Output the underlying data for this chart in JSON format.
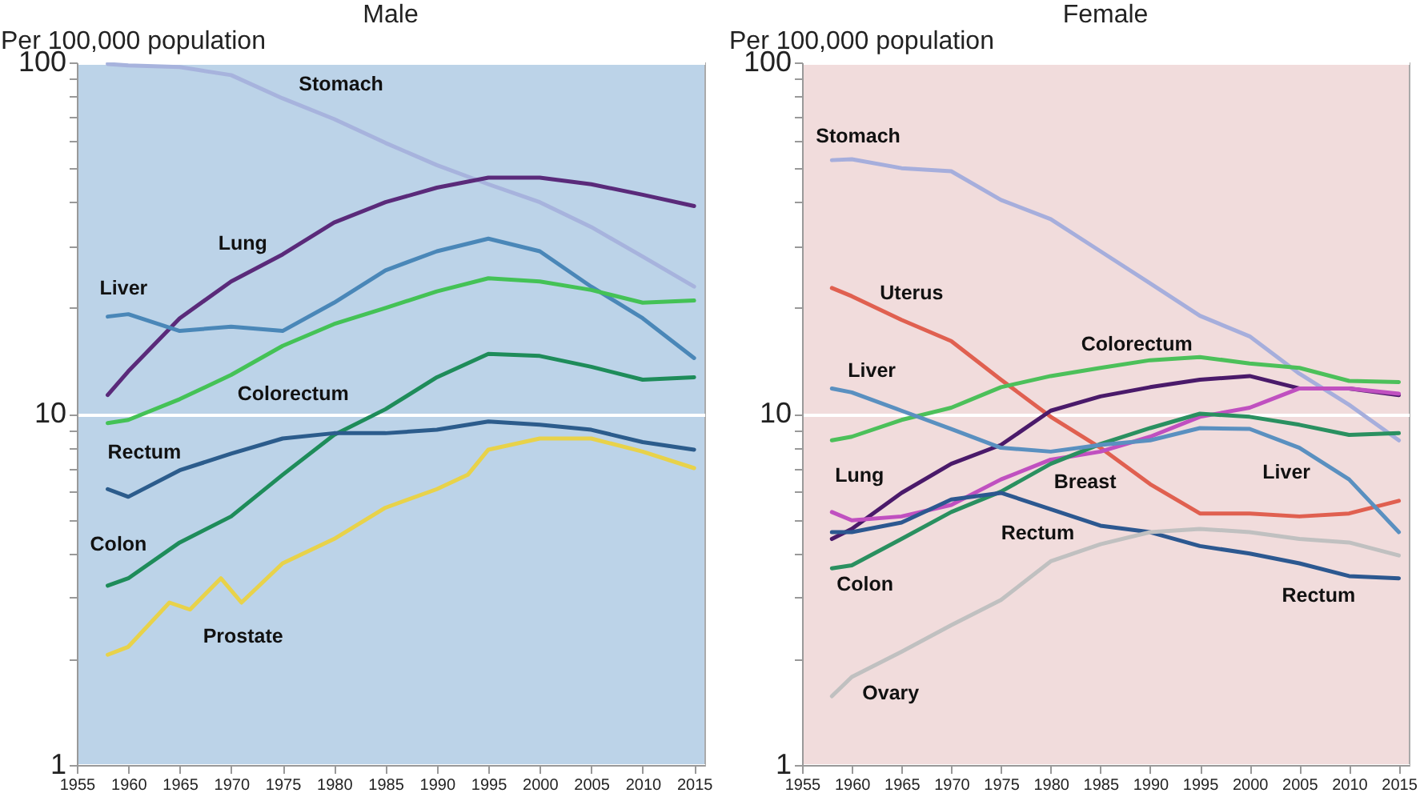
{
  "chart_data": [
    {
      "type": "line",
      "title": "Male",
      "ylabel": "Per 100,000 population",
      "log": true,
      "grid": "y",
      "xlim": [
        1955,
        2016
      ],
      "xticks": [
        1955,
        1960,
        1965,
        1970,
        1975,
        1980,
        1985,
        1990,
        1995,
        2000,
        2005,
        2010,
        2015
      ],
      "ylim": [
        1,
        100
      ],
      "yticks": [
        1,
        {
          "value": 2,
          "label": null
        },
        {
          "value": 3,
          "label": null
        },
        {
          "value": 4,
          "label": null
        },
        {
          "value": 5,
          "label": null
        },
        {
          "value": 6,
          "label": null
        },
        {
          "value": 7,
          "label": null
        },
        {
          "value": 8,
          "label": null
        },
        {
          "value": 9,
          "label": null
        },
        10,
        {
          "value": 20,
          "label": null
        },
        {
          "value": 30,
          "label": null
        },
        {
          "value": 40,
          "label": null
        },
        {
          "value": 50,
          "label": null
        },
        {
          "value": 60,
          "label": null
        },
        {
          "value": 70,
          "label": null
        },
        {
          "value": 80,
          "label": null
        },
        {
          "value": 90,
          "label": null
        },
        100
      ],
      "series": [
        {
          "name": "Stomach",
          "color": "#a7b3dd",
          "x": [
            1958,
            1960,
            1965,
            1970,
            1975,
            1980,
            1985,
            1990,
            1995,
            2000,
            2005,
            2010,
            2015
          ],
          "values": [
            99,
            98,
            97,
            92,
            79,
            69,
            59,
            51,
            45,
            40,
            34,
            28,
            23
          ]
        },
        {
          "name": "Lung",
          "color": "#5a2a7a",
          "x": [
            1958,
            1960,
            1965,
            1970,
            1975,
            1980,
            1985,
            1990,
            1995,
            2000,
            2005,
            2010,
            2015
          ],
          "values": [
            11.3,
            13.2,
            18.7,
            23.8,
            28.4,
            35,
            40,
            44,
            47,
            47,
            45,
            42,
            39
          ]
        },
        {
          "name": "Liver",
          "color": "#4a87b8",
          "x": [
            1958,
            1960,
            1965,
            1970,
            1975,
            1980,
            1985,
            1990,
            1995,
            2000,
            2005,
            2010,
            2015
          ],
          "values": [
            18.9,
            19.2,
            17.2,
            17.7,
            17.2,
            20.7,
            25.6,
            29,
            31.5,
            29,
            23,
            18.7,
            14.4
          ]
        },
        {
          "name": "Colorectum",
          "color": "#44c256",
          "x": [
            1958,
            1960,
            1965,
            1970,
            1975,
            1980,
            1985,
            1990,
            1995,
            2000,
            2005,
            2010,
            2015
          ],
          "values": [
            9.4,
            9.6,
            11,
            12.9,
            15.6,
            18,
            20,
            22.3,
            24.3,
            23.8,
            22.5,
            20.7,
            21
          ]
        },
        {
          "name": "Colon",
          "color": "#1e8c5a",
          "x": [
            1958,
            1960,
            1965,
            1970,
            1975,
            1980,
            1985,
            1990,
            1995,
            2000,
            2005,
            2010,
            2015
          ],
          "values": [
            3.24,
            3.4,
            4.3,
            5.1,
            6.7,
            8.7,
            10.3,
            12.7,
            14.8,
            14.6,
            13.6,
            12.5,
            12.7
          ]
        },
        {
          "name": "Rectum",
          "color": "#2c5c8c",
          "x": [
            1958,
            1960,
            1965,
            1970,
            1975,
            1980,
            1985,
            1990,
            1995,
            2000,
            2005,
            2010,
            2015
          ],
          "values": [
            6.1,
            5.8,
            6.9,
            7.7,
            8.5,
            8.8,
            8.8,
            9,
            9.5,
            9.3,
            9,
            8.3,
            7.9
          ]
        },
        {
          "name": "Prostate",
          "color": "#e8d24a",
          "x": [
            1958,
            1960,
            1964,
            1966,
            1969,
            1971,
            1975,
            1980,
            1985,
            1990,
            1993,
            1995,
            2000,
            2005,
            2010,
            2015
          ],
          "values": [
            2.06,
            2.17,
            2.9,
            2.77,
            3.4,
            2.9,
            3.75,
            4.4,
            5.4,
            6.1,
            6.7,
            7.9,
            8.5,
            8.5,
            7.8,
            7.0
          ]
        }
      ]
    },
    {
      "type": "line",
      "title": "Female",
      "ylabel": "Per 100,000 population",
      "log": true,
      "grid": "y",
      "xlim": [
        1955,
        2016
      ],
      "xticks": [
        1955,
        1960,
        1965,
        1970,
        1975,
        1980,
        1985,
        1990,
        1995,
        2000,
        2005,
        2010,
        2015
      ],
      "ylim": [
        1,
        100
      ],
      "yticks": [
        1,
        {
          "value": 2,
          "label": null
        },
        {
          "value": 3,
          "label": null
        },
        {
          "value": 4,
          "label": null
        },
        {
          "value": 5,
          "label": null
        },
        {
          "value": 6,
          "label": null
        },
        {
          "value": 7,
          "label": null
        },
        {
          "value": 8,
          "label": null
        },
        {
          "value": 9,
          "label": null
        },
        10,
        {
          "value": 20,
          "label": null
        },
        {
          "value": 30,
          "label": null
        },
        {
          "value": 40,
          "label": null
        },
        {
          "value": 50,
          "label": null
        },
        {
          "value": 60,
          "label": null
        },
        {
          "value": 70,
          "label": null
        },
        {
          "value": 80,
          "label": null
        },
        {
          "value": 90,
          "label": null
        },
        100
      ],
      "series": [
        {
          "name": "Stomach",
          "color": "#a6aedc",
          "x": [
            1958,
            1960,
            1965,
            1970,
            1975,
            1980,
            1985,
            1990,
            1995,
            2000,
            2005,
            2010,
            2015
          ],
          "values": [
            52.7,
            53,
            50,
            49,
            40.6,
            35.8,
            29,
            23.5,
            19,
            16.6,
            13,
            10.6,
            8.4
          ]
        },
        {
          "name": "Uterus",
          "color": "#e06050",
          "x": [
            1958,
            1960,
            1965,
            1970,
            1975,
            1980,
            1985,
            1990,
            1995,
            2000,
            2005,
            2010,
            2015
          ],
          "values": [
            22.8,
            21.6,
            18.5,
            16.1,
            12.5,
            9.8,
            8,
            6.3,
            5.2,
            5.2,
            5.1,
            5.2,
            5.65
          ]
        },
        {
          "name": "Colorectum",
          "color": "#4cc05a",
          "x": [
            1958,
            1960,
            1965,
            1970,
            1975,
            1980,
            1985,
            1990,
            1995,
            2000,
            2005,
            2010,
            2015
          ],
          "values": [
            8.4,
            8.6,
            9.6,
            10.4,
            11.9,
            12.8,
            13.5,
            14.2,
            14.5,
            13.9,
            13.5,
            12.4,
            12.3
          ]
        },
        {
          "name": "Lung",
          "color": "#4a1a6a",
          "x": [
            1958,
            1960,
            1965,
            1970,
            1975,
            1980,
            1985,
            1990,
            1995,
            2000,
            2005,
            2010,
            2015
          ],
          "values": [
            4.4,
            4.7,
            5.95,
            7.2,
            8.15,
            10.2,
            11.2,
            11.9,
            12.5,
            12.8,
            11.8,
            11.8,
            11.3
          ]
        },
        {
          "name": "Breast",
          "color": "#c050c0",
          "x": [
            1958,
            1960,
            1965,
            1970,
            1975,
            1980,
            1985,
            1990,
            1995,
            2000,
            2005,
            2010,
            2015
          ],
          "values": [
            5.25,
            4.97,
            5.1,
            5.5,
            6.5,
            7.4,
            7.8,
            8.6,
            9.8,
            10.4,
            11.8,
            11.8,
            11.4
          ]
        },
        {
          "name": "Colon",
          "color": "#2a9060",
          "x": [
            1958,
            1960,
            1965,
            1970,
            1975,
            1980,
            1985,
            1990,
            1995,
            2000,
            2005,
            2010,
            2015
          ],
          "values": [
            3.63,
            3.7,
            4.4,
            5.25,
            6,
            7.2,
            8.2,
            9.1,
            10,
            9.8,
            9.3,
            8.7,
            8.8
          ]
        },
        {
          "name": "Liver",
          "color": "#5a90c0",
          "x": [
            1958,
            1960,
            1965,
            1970,
            1975,
            1980,
            1985,
            1990,
            1995,
            2000,
            2005,
            2010,
            2015
          ],
          "values": [
            11.8,
            11.5,
            10.2,
            9.05,
            8,
            7.8,
            8.15,
            8.4,
            9.1,
            9.05,
            8,
            6.5,
            4.6
          ]
        },
        {
          "name": "Rectum",
          "color": "#2c5890",
          "x": [
            1958,
            1960,
            1965,
            1970,
            1975,
            1980,
            1985,
            1990,
            1995,
            2000,
            2005,
            2010,
            2015
          ],
          "values": [
            4.6,
            4.6,
            4.9,
            5.7,
            5.95,
            5.35,
            4.8,
            4.6,
            4.2,
            4,
            3.75,
            3.45,
            3.4
          ]
        },
        {
          "name": "Ovary",
          "color": "#c0c0c0",
          "x": [
            1958,
            1960,
            1965,
            1970,
            1975,
            1980,
            1985,
            1990,
            1995,
            2000,
            2005,
            2010,
            2015
          ],
          "values": [
            1.57,
            1.78,
            2.1,
            2.5,
            2.95,
            3.8,
            4.25,
            4.6,
            4.7,
            4.6,
            4.4,
            4.3,
            3.95
          ]
        }
      ]
    }
  ]
}
